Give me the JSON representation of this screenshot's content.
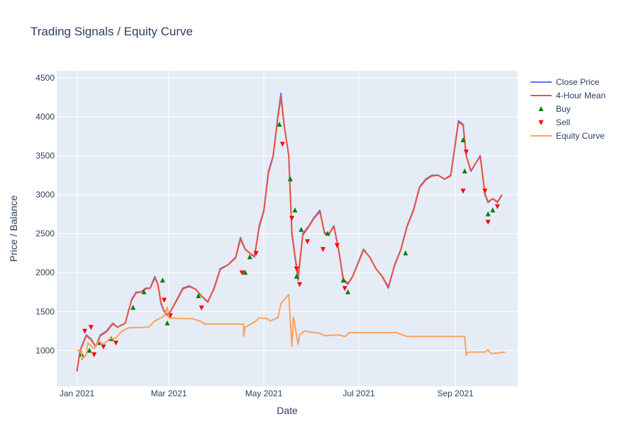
{
  "chart_data": {
    "type": "line",
    "title": "Trading Signals / Equity Curve",
    "xlabel": "Date",
    "ylabel": "Price / Balance",
    "xlim": [
      "2020-12-19",
      "2021-10-11"
    ],
    "ylim": [
      540,
      4590
    ],
    "grid": true,
    "legend_position": "right",
    "x_ticks": [
      {
        "date": "2021-01-01",
        "label": "Jan 2021"
      },
      {
        "date": "2021-03-01",
        "label": "Mar 2021"
      },
      {
        "date": "2021-05-01",
        "label": "May 2021"
      },
      {
        "date": "2021-07-01",
        "label": "Jul 2021"
      },
      {
        "date": "2021-09-01",
        "label": "Sep 2021"
      }
    ],
    "y_ticks": [
      1000,
      1500,
      2000,
      2500,
      3000,
      3500,
      4000,
      4500
    ],
    "series": [
      {
        "name": "Close Price",
        "color": "#636efa",
        "mode": "line",
        "points": [
          [
            "2021-01-01",
            730
          ],
          [
            "2021-01-03",
            1000
          ],
          [
            "2021-01-05",
            1100
          ],
          [
            "2021-01-07",
            1200
          ],
          [
            "2021-01-10",
            1150
          ],
          [
            "2021-01-13",
            1050
          ],
          [
            "2021-01-16",
            1200
          ],
          [
            "2021-01-20",
            1250
          ],
          [
            "2021-01-24",
            1350
          ],
          [
            "2021-01-27",
            1300
          ],
          [
            "2021-02-01",
            1350
          ],
          [
            "2021-02-05",
            1650
          ],
          [
            "2021-02-08",
            1750
          ],
          [
            "2021-02-11",
            1750
          ],
          [
            "2021-02-14",
            1800
          ],
          [
            "2021-02-17",
            1800
          ],
          [
            "2021-02-20",
            1950
          ],
          [
            "2021-02-22",
            1850
          ],
          [
            "2021-02-24",
            1600
          ],
          [
            "2021-02-26",
            1500
          ],
          [
            "2021-02-28",
            1450
          ],
          [
            "2021-03-02",
            1500
          ],
          [
            "2021-03-06",
            1650
          ],
          [
            "2021-03-10",
            1800
          ],
          [
            "2021-03-14",
            1830
          ],
          [
            "2021-03-18",
            1790
          ],
          [
            "2021-03-22",
            1700
          ],
          [
            "2021-03-26",
            1620
          ],
          [
            "2021-03-30",
            1800
          ],
          [
            "2021-04-03",
            2050
          ],
          [
            "2021-04-08",
            2100
          ],
          [
            "2021-04-13",
            2200
          ],
          [
            "2021-04-16",
            2450
          ],
          [
            "2021-04-19",
            2300
          ],
          [
            "2021-04-22",
            2250
          ],
          [
            "2021-04-25",
            2200
          ],
          [
            "2021-04-28",
            2600
          ],
          [
            "2021-05-01",
            2800
          ],
          [
            "2021-05-04",
            3300
          ],
          [
            "2021-05-07",
            3500
          ],
          [
            "2021-05-10",
            4000
          ],
          [
            "2021-05-12",
            4300
          ],
          [
            "2021-05-14",
            3900
          ],
          [
            "2021-05-17",
            3500
          ],
          [
            "2021-05-19",
            2500
          ],
          [
            "2021-05-21",
            2200
          ],
          [
            "2021-05-23",
            1900
          ],
          [
            "2021-05-26",
            2500
          ],
          [
            "2021-05-30",
            2600
          ],
          [
            "2021-06-02",
            2700
          ],
          [
            "2021-06-06",
            2800
          ],
          [
            "2021-06-09",
            2500
          ],
          [
            "2021-06-12",
            2500
          ],
          [
            "2021-06-15",
            2600
          ],
          [
            "2021-06-18",
            2300
          ],
          [
            "2021-06-21",
            1900
          ],
          [
            "2021-06-24",
            1850
          ],
          [
            "2021-06-27",
            1950
          ],
          [
            "2021-06-30",
            2100
          ],
          [
            "2021-07-04",
            2300
          ],
          [
            "2021-07-08",
            2200
          ],
          [
            "2021-07-12",
            2050
          ],
          [
            "2021-07-16",
            1950
          ],
          [
            "2021-07-20",
            1800
          ],
          [
            "2021-07-24",
            2100
          ],
          [
            "2021-07-28",
            2300
          ],
          [
            "2021-08-01",
            2600
          ],
          [
            "2021-08-05",
            2800
          ],
          [
            "2021-08-09",
            3100
          ],
          [
            "2021-08-13",
            3200
          ],
          [
            "2021-08-17",
            3250
          ],
          [
            "2021-08-21",
            3250
          ],
          [
            "2021-08-25",
            3200
          ],
          [
            "2021-08-29",
            3250
          ],
          [
            "2021-09-03",
            3950
          ],
          [
            "2021-09-06",
            3900
          ],
          [
            "2021-09-08",
            3500
          ],
          [
            "2021-09-11",
            3300
          ],
          [
            "2021-09-14",
            3400
          ],
          [
            "2021-09-17",
            3500
          ],
          [
            "2021-09-20",
            3000
          ],
          [
            "2021-09-22",
            2900
          ],
          [
            "2021-09-25",
            2950
          ],
          [
            "2021-09-28",
            2900
          ],
          [
            "2021-10-01",
            3000
          ]
        ]
      },
      {
        "name": "4-Hour Mean",
        "color": "#ef553b",
        "mode": "line",
        "points": [
          [
            "2021-01-01",
            730
          ],
          [
            "2021-01-03",
            990
          ],
          [
            "2021-01-05",
            1090
          ],
          [
            "2021-01-07",
            1190
          ],
          [
            "2021-01-10",
            1140
          ],
          [
            "2021-01-13",
            1050
          ],
          [
            "2021-01-16",
            1190
          ],
          [
            "2021-01-20",
            1240
          ],
          [
            "2021-01-24",
            1340
          ],
          [
            "2021-01-27",
            1300
          ],
          [
            "2021-02-01",
            1350
          ],
          [
            "2021-02-05",
            1640
          ],
          [
            "2021-02-08",
            1740
          ],
          [
            "2021-02-11",
            1750
          ],
          [
            "2021-02-14",
            1790
          ],
          [
            "2021-02-17",
            1800
          ],
          [
            "2021-02-20",
            1930
          ],
          [
            "2021-02-22",
            1850
          ],
          [
            "2021-02-24",
            1610
          ],
          [
            "2021-02-26",
            1510
          ],
          [
            "2021-02-28",
            1460
          ],
          [
            "2021-03-02",
            1500
          ],
          [
            "2021-03-06",
            1640
          ],
          [
            "2021-03-10",
            1790
          ],
          [
            "2021-03-14",
            1820
          ],
          [
            "2021-03-18",
            1790
          ],
          [
            "2021-03-22",
            1700
          ],
          [
            "2021-03-26",
            1630
          ],
          [
            "2021-03-30",
            1790
          ],
          [
            "2021-04-03",
            2040
          ],
          [
            "2021-04-08",
            2100
          ],
          [
            "2021-04-13",
            2190
          ],
          [
            "2021-04-16",
            2430
          ],
          [
            "2021-04-19",
            2300
          ],
          [
            "2021-04-22",
            2250
          ],
          [
            "2021-04-25",
            2210
          ],
          [
            "2021-04-28",
            2580
          ],
          [
            "2021-05-01",
            2790
          ],
          [
            "2021-05-04",
            3280
          ],
          [
            "2021-05-07",
            3490
          ],
          [
            "2021-05-10",
            3980
          ],
          [
            "2021-05-12",
            4250
          ],
          [
            "2021-05-14",
            3900
          ],
          [
            "2021-05-17",
            3500
          ],
          [
            "2021-05-19",
            2520
          ],
          [
            "2021-05-21",
            2220
          ],
          [
            "2021-05-23",
            1950
          ],
          [
            "2021-05-26",
            2480
          ],
          [
            "2021-05-30",
            2590
          ],
          [
            "2021-06-02",
            2690
          ],
          [
            "2021-06-06",
            2780
          ],
          [
            "2021-06-09",
            2510
          ],
          [
            "2021-06-12",
            2500
          ],
          [
            "2021-06-15",
            2590
          ],
          [
            "2021-06-18",
            2300
          ],
          [
            "2021-06-21",
            1920
          ],
          [
            "2021-06-24",
            1860
          ],
          [
            "2021-06-27",
            1950
          ],
          [
            "2021-06-30",
            2090
          ],
          [
            "2021-07-04",
            2290
          ],
          [
            "2021-07-08",
            2200
          ],
          [
            "2021-07-12",
            2050
          ],
          [
            "2021-07-16",
            1950
          ],
          [
            "2021-07-20",
            1820
          ],
          [
            "2021-07-24",
            2090
          ],
          [
            "2021-07-28",
            2290
          ],
          [
            "2021-08-01",
            2590
          ],
          [
            "2021-08-05",
            2790
          ],
          [
            "2021-08-09",
            3090
          ],
          [
            "2021-08-13",
            3190
          ],
          [
            "2021-08-17",
            3240
          ],
          [
            "2021-08-21",
            3250
          ],
          [
            "2021-08-25",
            3200
          ],
          [
            "2021-08-29",
            3240
          ],
          [
            "2021-09-03",
            3930
          ],
          [
            "2021-09-06",
            3890
          ],
          [
            "2021-09-08",
            3500
          ],
          [
            "2021-09-11",
            3310
          ],
          [
            "2021-09-14",
            3400
          ],
          [
            "2021-09-17",
            3490
          ],
          [
            "2021-09-20",
            3010
          ],
          [
            "2021-09-22",
            2910
          ],
          [
            "2021-09-25",
            2950
          ],
          [
            "2021-09-28",
            2910
          ],
          [
            "2021-10-01",
            3000
          ]
        ]
      },
      {
        "name": "Buy",
        "color": "#008000",
        "mode": "markers",
        "marker": "triangle-up",
        "points": [
          [
            "2021-01-04",
            950
          ],
          [
            "2021-01-09",
            1000
          ],
          [
            "2021-01-15",
            1100
          ],
          [
            "2021-01-23",
            1150
          ],
          [
            "2021-02-06",
            1550
          ],
          [
            "2021-02-13",
            1750
          ],
          [
            "2021-02-25",
            1900
          ],
          [
            "2021-02-28",
            1350
          ],
          [
            "2021-03-20",
            1700
          ],
          [
            "2021-04-19",
            2000
          ],
          [
            "2021-04-22",
            2200
          ],
          [
            "2021-05-11",
            3900
          ],
          [
            "2021-05-18",
            3200
          ],
          [
            "2021-05-21",
            2800
          ],
          [
            "2021-05-22",
            1950
          ],
          [
            "2021-05-25",
            2550
          ],
          [
            "2021-06-11",
            2500
          ],
          [
            "2021-06-21",
            1900
          ],
          [
            "2021-06-24",
            1750
          ],
          [
            "2021-07-31",
            2250
          ],
          [
            "2021-09-06",
            3700
          ],
          [
            "2021-09-07",
            3300
          ],
          [
            "2021-09-22",
            2750
          ],
          [
            "2021-09-25",
            2800
          ]
        ]
      },
      {
        "name": "Sell",
        "color": "#ff0000",
        "mode": "markers",
        "marker": "triangle-down",
        "points": [
          [
            "2021-01-06",
            1250
          ],
          [
            "2021-01-10",
            1300
          ],
          [
            "2021-01-12",
            950
          ],
          [
            "2021-01-18",
            1050
          ],
          [
            "2021-01-26",
            1100
          ],
          [
            "2021-02-26",
            1650
          ],
          [
            "2021-03-02",
            1450
          ],
          [
            "2021-03-22",
            1550
          ],
          [
            "2021-04-17",
            2000
          ],
          [
            "2021-04-26",
            2250
          ],
          [
            "2021-05-13",
            3650
          ],
          [
            "2021-05-19",
            2700
          ],
          [
            "2021-05-22",
            2050
          ],
          [
            "2021-05-24",
            1850
          ],
          [
            "2021-05-29",
            2400
          ],
          [
            "2021-06-08",
            2300
          ],
          [
            "2021-06-17",
            2350
          ],
          [
            "2021-06-22",
            1800
          ],
          [
            "2021-09-06",
            3050
          ],
          [
            "2021-09-08",
            3550
          ],
          [
            "2021-09-20",
            3050
          ],
          [
            "2021-09-22",
            2650
          ],
          [
            "2021-09-28",
            2850
          ]
        ]
      },
      {
        "name": "Equity Curve",
        "color": "#ffa15a",
        "mode": "line",
        "points": [
          [
            "2021-01-01",
            1000
          ],
          [
            "2021-01-04",
            1000
          ],
          [
            "2021-01-04",
            880
          ],
          [
            "2021-01-07",
            950
          ],
          [
            "2021-01-08",
            1100
          ],
          [
            "2021-01-12",
            1020
          ],
          [
            "2021-01-15",
            1120
          ],
          [
            "2021-01-18",
            1080
          ],
          [
            "2021-01-22",
            1150
          ],
          [
            "2021-01-26",
            1160
          ],
          [
            "2021-01-30",
            1250
          ],
          [
            "2021-02-03",
            1290
          ],
          [
            "2021-02-16",
            1300
          ],
          [
            "2021-02-20",
            1380
          ],
          [
            "2021-02-24",
            1420
          ],
          [
            "2021-02-26",
            1440
          ],
          [
            "2021-02-28",
            1560
          ],
          [
            "2021-03-01",
            1420
          ],
          [
            "2021-03-08",
            1410
          ],
          [
            "2021-03-16",
            1410
          ],
          [
            "2021-03-22",
            1370
          ],
          [
            "2021-03-24",
            1340
          ],
          [
            "2021-04-14",
            1340
          ],
          [
            "2021-04-18",
            1340
          ],
          [
            "2021-04-18",
            1180
          ],
          [
            "2021-04-19",
            1300
          ],
          [
            "2021-04-21",
            1320
          ],
          [
            "2021-04-26",
            1380
          ],
          [
            "2021-04-28",
            1420
          ],
          [
            "2021-05-03",
            1410
          ],
          [
            "2021-05-05",
            1380
          ],
          [
            "2021-05-10",
            1420
          ],
          [
            "2021-05-12",
            1600
          ],
          [
            "2021-05-14",
            1650
          ],
          [
            "2021-05-17",
            1720
          ],
          [
            "2021-05-19",
            1050
          ],
          [
            "2021-05-20",
            1430
          ],
          [
            "2021-05-23",
            1080
          ],
          [
            "2021-05-24",
            1200
          ],
          [
            "2021-05-27",
            1250
          ],
          [
            "2021-06-06",
            1220
          ],
          [
            "2021-06-09",
            1190
          ],
          [
            "2021-06-18",
            1200
          ],
          [
            "2021-06-22",
            1180
          ],
          [
            "2021-06-25",
            1230
          ],
          [
            "2021-07-25",
            1230
          ],
          [
            "2021-08-01",
            1180
          ],
          [
            "2021-09-07",
            1180
          ],
          [
            "2021-09-08",
            940
          ],
          [
            "2021-09-09",
            980
          ],
          [
            "2021-09-20",
            980
          ],
          [
            "2021-09-22",
            1010
          ],
          [
            "2021-09-24",
            960
          ],
          [
            "2021-10-03",
            980
          ]
        ]
      }
    ]
  }
}
